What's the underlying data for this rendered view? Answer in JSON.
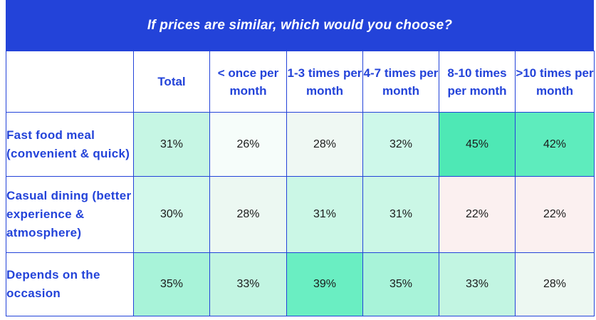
{
  "chart_data": {
    "type": "table",
    "title": "If prices are similar, which would you choose?",
    "columns": [
      "Total",
      "< once per month",
      "1-3 times per month",
      "4-7 times per month",
      "8-10 times per month",
      ">10 times per month"
    ],
    "rows": [
      {
        "label": "Fast food meal (convenient & quick)",
        "values": [
          "31%",
          "26%",
          "28%",
          "32%",
          "45%",
          "42%"
        ],
        "colors": [
          "#c6f6e4",
          "#f6fdfa",
          "#eff8f3",
          "#cef8ea",
          "#4ee8b5",
          "#5eecbd"
        ]
      },
      {
        "label": "Casual dining (better experience & atmosphere)",
        "values": [
          "30%",
          "28%",
          "31%",
          "31%",
          "22%",
          "22%"
        ],
        "colors": [
          "#d3f9eb",
          "#ecf8f2",
          "#cbf7e6",
          "#cbf7e6",
          "#fbf0f0",
          "#fbf0f0"
        ]
      },
      {
        "label": "Depends on the occasion",
        "values": [
          "35%",
          "33%",
          "39%",
          "35%",
          "33%",
          "28%"
        ],
        "colors": [
          "#a8f3d9",
          "#c2f5e2",
          "#6aeec2",
          "#a8f3d9",
          "#c2f5e2",
          "#edf8f2"
        ]
      }
    ]
  }
}
